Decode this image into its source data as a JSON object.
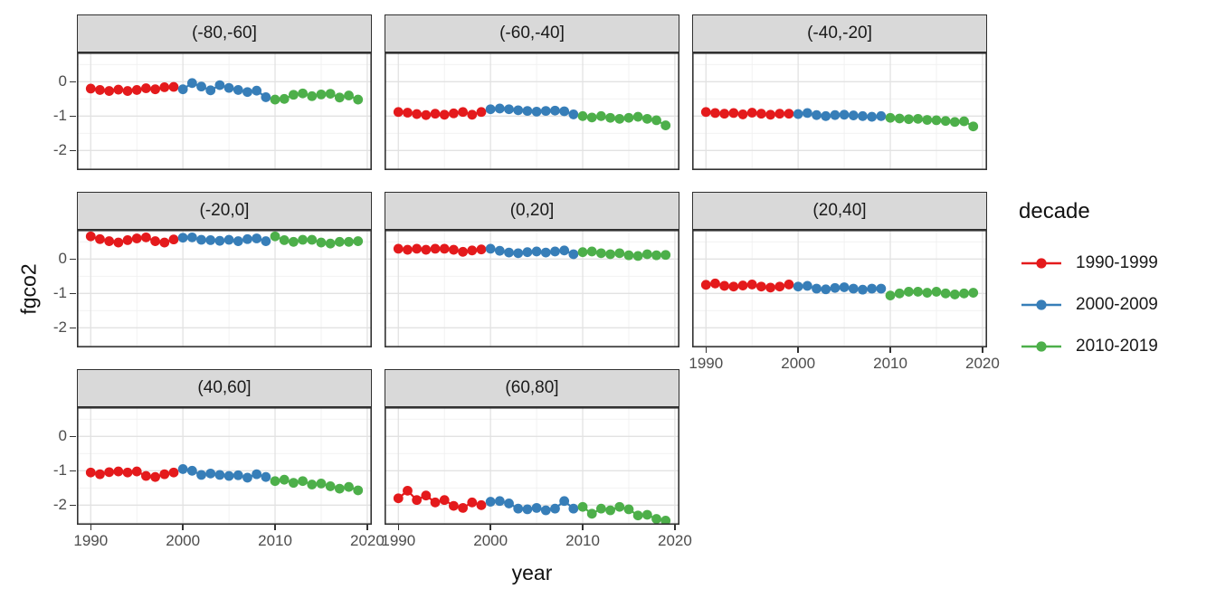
{
  "legend": {
    "title": "decade",
    "entries": [
      {
        "label": "1990-1999",
        "color": "#E41A1C"
      },
      {
        "label": "2000-2009",
        "color": "#377EB8"
      },
      {
        "label": "2010-2019",
        "color": "#4DAF4A"
      }
    ]
  },
  "style": {
    "strip_bg": "#d9d9d9",
    "panel_bg": "#ffffff",
    "panel_border": "#333333",
    "grid_major": "#e2e2e2",
    "grid_minor": "#f0f0f0",
    "tick_text": "#4d4d4d"
  },
  "chart_data": {
    "type": "scatter",
    "title": "",
    "xlabel": "year",
    "ylabel": "fgco2",
    "legend_position": "right",
    "grid": "major+minor",
    "x_ticks": [
      1990,
      2000,
      2010,
      2020
    ],
    "y_ticks": [
      0,
      -1,
      -2
    ],
    "xlim": [
      1988.5,
      2020.5
    ],
    "ylim": [
      -2.57,
      0.85
    ],
    "decade_of_point": "floor((year-1990)/10) -> legend entry index",
    "x": [
      1990,
      1991,
      1992,
      1993,
      1994,
      1995,
      1996,
      1997,
      1998,
      1999,
      2000,
      2001,
      2002,
      2003,
      2004,
      2005,
      2006,
      2007,
      2008,
      2009,
      2010,
      2011,
      2012,
      2013,
      2014,
      2015,
      2016,
      2017,
      2018,
      2019
    ],
    "facets": [
      {
        "label": "(-80,-60]",
        "values": [
          -0.2,
          -0.24,
          -0.27,
          -0.23,
          -0.27,
          -0.24,
          -0.19,
          -0.22,
          -0.16,
          -0.15,
          -0.22,
          -0.04,
          -0.14,
          -0.25,
          -0.1,
          -0.18,
          -0.24,
          -0.3,
          -0.26,
          -0.45,
          -0.52,
          -0.5,
          -0.38,
          -0.34,
          -0.42,
          -0.37,
          -0.35,
          -0.46,
          -0.4,
          -0.52
        ]
      },
      {
        "label": "(-60,-40]",
        "values": [
          -0.88,
          -0.9,
          -0.94,
          -0.97,
          -0.93,
          -0.96,
          -0.92,
          -0.88,
          -0.96,
          -0.88,
          -0.8,
          -0.78,
          -0.8,
          -0.83,
          -0.85,
          -0.87,
          -0.85,
          -0.84,
          -0.86,
          -0.95,
          -1.0,
          -1.04,
          -1.0,
          -1.05,
          -1.08,
          -1.05,
          -1.02,
          -1.08,
          -1.12,
          -1.27
        ]
      },
      {
        "label": "(-40,-20]",
        "values": [
          -0.88,
          -0.91,
          -0.93,
          -0.91,
          -0.95,
          -0.9,
          -0.93,
          -0.96,
          -0.93,
          -0.93,
          -0.94,
          -0.91,
          -0.97,
          -1.0,
          -0.97,
          -0.96,
          -0.98,
          -1.0,
          -1.02,
          -1.0,
          -1.05,
          -1.07,
          -1.09,
          -1.08,
          -1.11,
          -1.12,
          -1.14,
          -1.17,
          -1.15,
          -1.3
        ]
      },
      {
        "label": "(-20,0]",
        "values": [
          0.66,
          0.58,
          0.52,
          0.48,
          0.55,
          0.6,
          0.63,
          0.52,
          0.48,
          0.57,
          0.62,
          0.63,
          0.56,
          0.55,
          0.53,
          0.56,
          0.52,
          0.58,
          0.6,
          0.52,
          0.66,
          0.55,
          0.5,
          0.56,
          0.56,
          0.48,
          0.45,
          0.5,
          0.5,
          0.52
        ]
      },
      {
        "label": "(0,20]",
        "values": [
          0.3,
          0.27,
          0.3,
          0.27,
          0.3,
          0.3,
          0.27,
          0.21,
          0.25,
          0.28,
          0.3,
          0.24,
          0.19,
          0.17,
          0.2,
          0.22,
          0.19,
          0.22,
          0.25,
          0.14,
          0.2,
          0.22,
          0.17,
          0.14,
          0.17,
          0.11,
          0.09,
          0.14,
          0.11,
          0.12
        ]
      },
      {
        "label": "(20,40]",
        "values": [
          -0.75,
          -0.71,
          -0.78,
          -0.8,
          -0.77,
          -0.74,
          -0.8,
          -0.83,
          -0.8,
          -0.74,
          -0.8,
          -0.78,
          -0.86,
          -0.88,
          -0.84,
          -0.82,
          -0.86,
          -0.89,
          -0.86,
          -0.86,
          -1.06,
          -1.0,
          -0.95,
          -0.95,
          -0.98,
          -0.95,
          -1.0,
          -1.03,
          -1.0,
          -0.98
        ]
      },
      {
        "label": "(40,60]",
        "values": [
          -1.05,
          -1.1,
          -1.04,
          -1.02,
          -1.05,
          -1.02,
          -1.15,
          -1.18,
          -1.1,
          -1.05,
          -0.95,
          -1.0,
          -1.12,
          -1.08,
          -1.12,
          -1.15,
          -1.13,
          -1.2,
          -1.1,
          -1.18,
          -1.3,
          -1.26,
          -1.35,
          -1.3,
          -1.4,
          -1.37,
          -1.45,
          -1.52,
          -1.47,
          -1.57
        ]
      },
      {
        "label": "(60,80]",
        "values": [
          -1.8,
          -1.58,
          -1.85,
          -1.72,
          -1.92,
          -1.85,
          -2.02,
          -2.08,
          -1.92,
          -2.0,
          -1.9,
          -1.88,
          -1.95,
          -2.1,
          -2.12,
          -2.08,
          -2.15,
          -2.1,
          -1.88,
          -2.1,
          -2.05,
          -2.25,
          -2.1,
          -2.15,
          -2.05,
          -2.12,
          -2.3,
          -2.28,
          -2.4,
          -2.45
        ]
      }
    ]
  }
}
